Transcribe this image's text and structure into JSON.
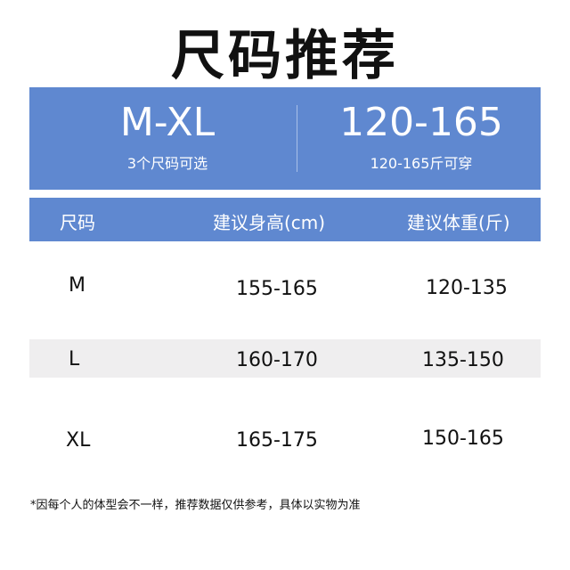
{
  "title": "尺码推荐",
  "hero": {
    "sizes": "M-XL",
    "sizes_sub": "3个尺码可选",
    "weight": "120-165",
    "weight_sub": "120-165斤可穿"
  },
  "colors": {
    "accent": "#5f88d0",
    "band": "#efeeef"
  },
  "table": {
    "headers": [
      "尺码",
      "建议身高(cm)",
      "建议体重(斤)"
    ],
    "rows": [
      [
        "M",
        "155-165",
        "120-135"
      ],
      [
        "L",
        "160-170",
        "135-150"
      ],
      [
        "XL",
        "165-175",
        "150-165"
      ]
    ]
  },
  "note": "*因每个人的体型会不一样，推荐数据仅供参考，具体以实物为准"
}
